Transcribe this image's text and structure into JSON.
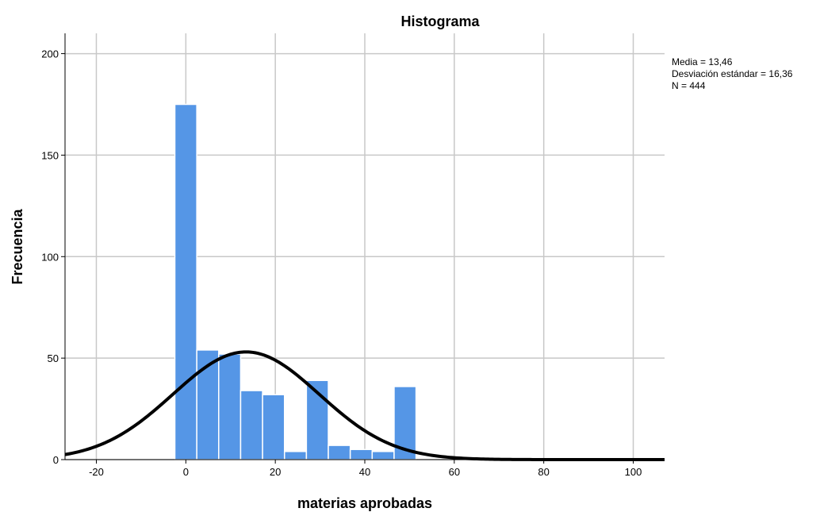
{
  "chart_data": {
    "type": "bar",
    "title": "Histograma",
    "xlabel": "materias aprobadas",
    "ylabel": "Frecuencia",
    "xlim": [
      -27,
      107
    ],
    "ylim": [
      0,
      210
    ],
    "x_ticks": [
      -20,
      0,
      20,
      40,
      60,
      80,
      100
    ],
    "y_ticks": [
      0,
      50,
      100,
      150,
      200
    ],
    "grid": true,
    "bin_width": 4.9,
    "bins": [
      {
        "start": -2.45,
        "end": 2.45,
        "count": 175
      },
      {
        "start": 2.45,
        "end": 7.35,
        "count": 54
      },
      {
        "start": 7.35,
        "end": 12.25,
        "count": 52
      },
      {
        "start": 12.25,
        "end": 17.15,
        "count": 34
      },
      {
        "start": 17.15,
        "end": 22.05,
        "count": 32
      },
      {
        "start": 22.05,
        "end": 26.95,
        "count": 4
      },
      {
        "start": 26.95,
        "end": 31.85,
        "count": 39
      },
      {
        "start": 31.85,
        "end": 36.75,
        "count": 7
      },
      {
        "start": 36.75,
        "end": 41.65,
        "count": 5
      },
      {
        "start": 41.65,
        "end": 46.55,
        "count": 4
      },
      {
        "start": 46.55,
        "end": 51.45,
        "count": 36
      },
      {
        "start": 93.6,
        "end": 98.5,
        "count": 0.4
      },
      {
        "start": 98.5,
        "end": 103.4,
        "count": 0.4
      }
    ],
    "normal_curve": {
      "mean": 13.46,
      "sd": 16.36,
      "n": 444
    },
    "stats_text": [
      "Media = 13,46",
      "Desviación estándar = 16,36",
      "N = 444"
    ],
    "colors": {
      "bar_fill": "#5596e6",
      "bar_stroke": "#ffffff",
      "curve": "#000000",
      "grid": "#c8c8c8"
    }
  }
}
